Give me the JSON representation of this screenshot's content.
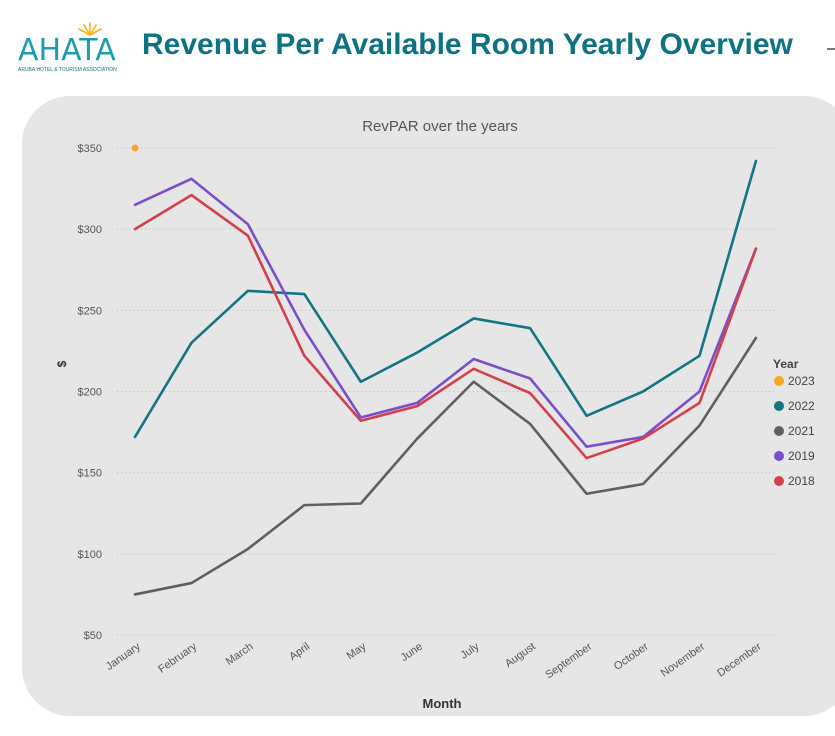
{
  "header": {
    "logo_text": "AHATA",
    "logo_subtitle": "ARUBA HOTEL & TOURISM ASSOCIATION",
    "title": "Revenue Per Available Room Yearly Overview"
  },
  "colors": {
    "title": "#0f7282",
    "panel_background": "#e6e6e6",
    "logo": "#1f9bb0",
    "logo_sun": "#f4b31a"
  },
  "chart_data": {
    "type": "line",
    "title": "RevPAR over the years",
    "xlabel": "Month",
    "ylabel": "$",
    "categories": [
      "January",
      "February",
      "March",
      "April",
      "May",
      "June",
      "July",
      "August",
      "September",
      "October",
      "November",
      "December"
    ],
    "y_ticks": [
      50,
      100,
      150,
      200,
      250,
      300,
      350
    ],
    "y_tick_labels": [
      "$50",
      "$100",
      "$150",
      "$200",
      "$250",
      "$300",
      "$350"
    ],
    "ylim": [
      50,
      360
    ],
    "grid": "horizontal dotted",
    "legend": {
      "title": "Year",
      "placement": "right"
    },
    "series": [
      {
        "name": "2023",
        "color": "#f5a623",
        "values": [
          350,
          null,
          null,
          null,
          null,
          null,
          null,
          null,
          null,
          null,
          null,
          null
        ]
      },
      {
        "name": "2022",
        "color": "#137484",
        "values": [
          172,
          230,
          262,
          260,
          206,
          224,
          245,
          239,
          185,
          200,
          222,
          342
        ]
      },
      {
        "name": "2021",
        "color": "#5f5f5f",
        "values": [
          75,
          82,
          103,
          130,
          131,
          171,
          206,
          180,
          137,
          143,
          179,
          233
        ]
      },
      {
        "name": "2019",
        "color": "#7c4dca",
        "values": [
          315,
          331,
          303,
          238,
          184,
          193,
          220,
          208,
          166,
          172,
          200,
          288
        ]
      },
      {
        "name": "2018",
        "color": "#d2404c",
        "values": [
          300,
          321,
          296,
          222,
          182,
          191,
          214,
          199,
          159,
          171,
          193,
          288
        ]
      }
    ]
  }
}
